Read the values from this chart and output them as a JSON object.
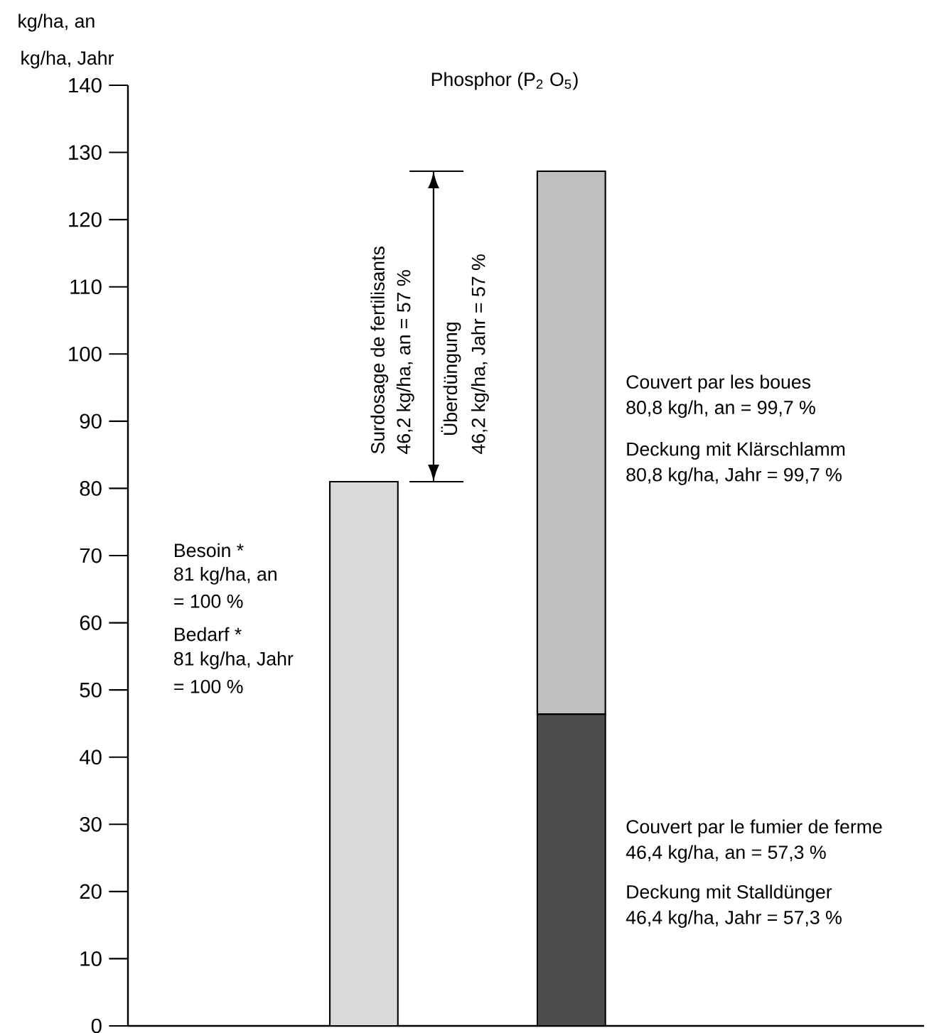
{
  "chart_data": {
    "type": "bar",
    "stacked": true,
    "title": "Phosphor (P$_{2}$ O$_{5}$)",
    "ylabel": "kg/ha, an",
    "categories": [
      null,
      null
    ],
    "series": [
      {
        "color": "#d9d9d9",
        "values": [
          81,
          null
        ]
      },
      {
        "color": "#4d4d4d",
        "values": [
          null,
          46.4
        ]
      },
      {
        "color": "#bfbfbf",
        "values": [
          null,
          80.8
        ]
      }
    ],
    "ylim": [
      0,
      140
    ],
    "yticks": [
      0,
      10,
      20,
      30,
      40,
      50,
      60,
      70,
      80,
      90,
      100,
      110,
      120,
      130,
      140
    ],
    "annotations": [
      "kg/ha, Jahr",
      "Besoin *",
      "81 kg/ha, an",
      "= 100 %",
      "Bedarf *",
      "81 kg/ha, Jahr",
      "= 100 %",
      "Surdosage de fertilisants",
      "46,2 kg/ha, an = 57 %",
      "Überdüngung",
      "46,2 kg/ha, Jahr = 57 %",
      "Couvert par les boues",
      "80,8 kg/h, an = 99,7 %",
      "Deckung mit Klärschlamm",
      "80,8 kg/ha, Jahr = 99,7 %",
      "Couvert par le fumier de ferme",
      "46,4 kg/ha, an = 57,3 %",
      "Deckung mit Stalldünger",
      "46,4 kg/ha, Jahr = 57,3 %"
    ]
  }
}
